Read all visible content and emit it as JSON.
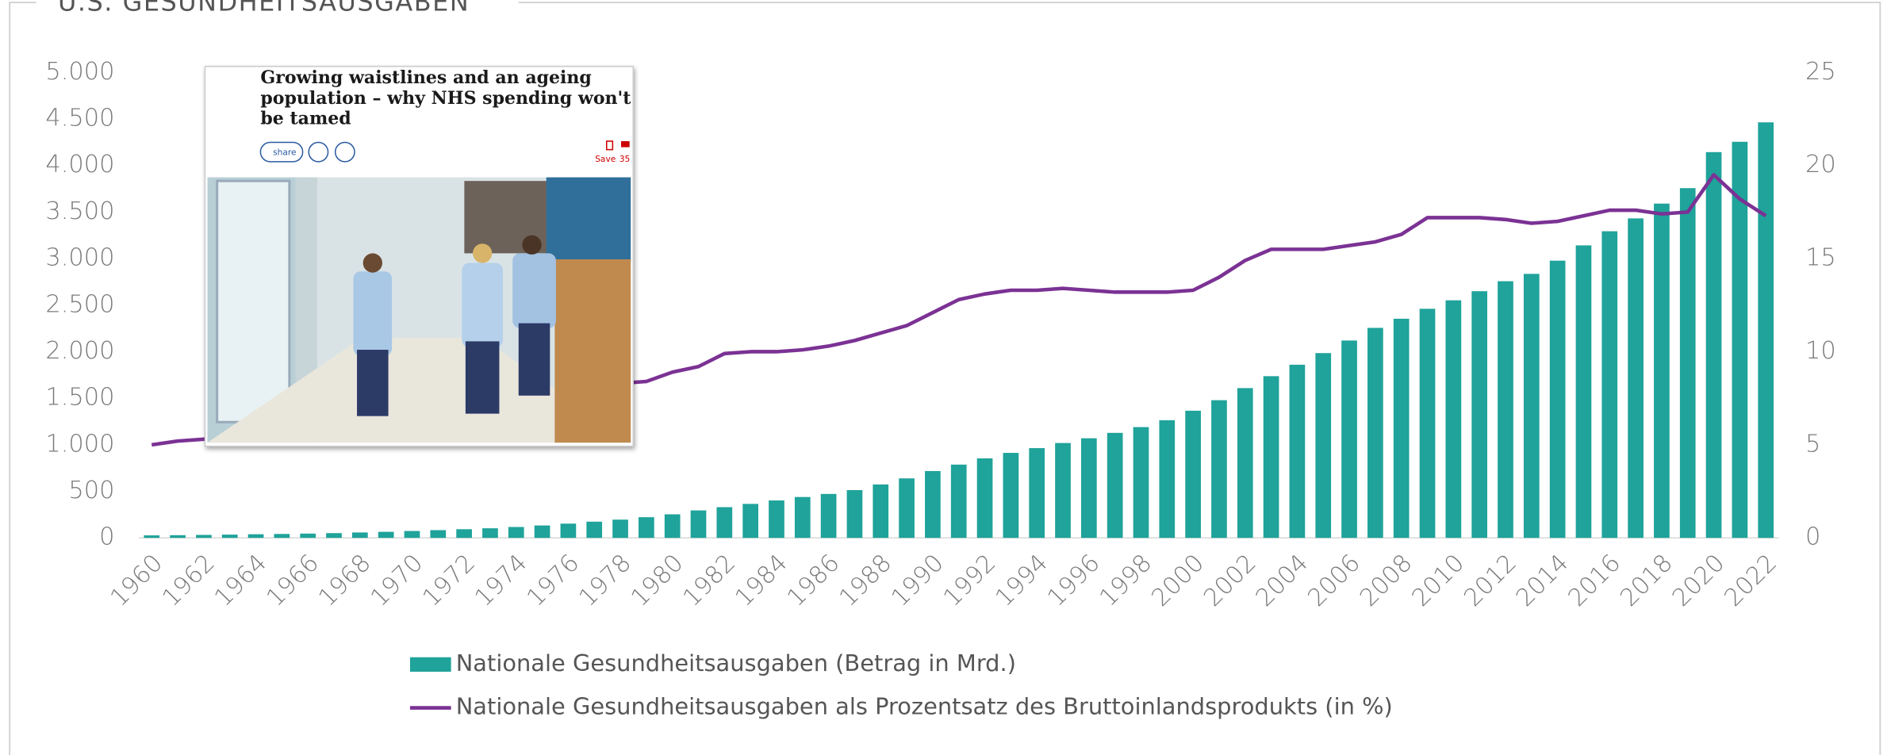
{
  "chart_data": {
    "type": "bar",
    "title": "U.S. GESUNDHEITSAUSGABEN",
    "categories": [
      "1960",
      null,
      "1962",
      null,
      "1964",
      null,
      "1966",
      null,
      "1968",
      null,
      "1970",
      null,
      "1972",
      null,
      "1974",
      null,
      "1976",
      null,
      "1978",
      null,
      "1980",
      null,
      "1982",
      null,
      "1984",
      null,
      "1986",
      null,
      "1988",
      null,
      "1990",
      null,
      "1992",
      null,
      "1994",
      null,
      "1996",
      null,
      "1998",
      null,
      "2000",
      null,
      "2002",
      null,
      "2004",
      null,
      "2006",
      null,
      "2008",
      null,
      "2010",
      null,
      "2012",
      null,
      "2014",
      null,
      "2016",
      null,
      "2018",
      null,
      "2020",
      null,
      "2022"
    ],
    "series": [
      {
        "name": "Nationale Gesundheitsausgaben (Betrag in Mrd.)",
        "type": "bar",
        "color": "#1fa39a",
        "values": [
          27,
          29,
          32,
          35,
          39,
          42,
          46,
          51,
          58,
          65,
          74,
          83,
          93,
          103,
          117,
          133,
          153,
          174,
          196,
          222,
          253,
          295,
          330,
          365,
          402,
          439,
          472,
          513,
          574,
          639,
          718,
          787,
          854,
          913,
          964,
          1019,
          1070,
          1128,
          1190,
          1264,
          1366,
          1479,
          1609,
          1737,
          1860,
          1985,
          2120,
          2256,
          2354,
          2461,
          2552,
          2650,
          2757,
          2836,
          2978,
          3142,
          3294,
          3432,
          3591,
          3757,
          4144,
          4255,
          4464
        ]
      },
      {
        "name": "Nationale Gesundheitsausgaben als Prozentsatz des Bruttoinlandsprodukts (in %)",
        "type": "line",
        "axis": "y2",
        "color": "#7b3294",
        "values": [
          5.0,
          5.2,
          5.3,
          5.4,
          5.6,
          5.6,
          5.6,
          6.0,
          6.2,
          6.4,
          6.9,
          7.1,
          7.2,
          7.3,
          7.6,
          8.0,
          8.2,
          8.4,
          8.3,
          8.4,
          8.9,
          9.2,
          9.9,
          10.0,
          10.0,
          10.1,
          10.3,
          10.6,
          11.0,
          11.4,
          12.1,
          12.8,
          13.1,
          13.3,
          13.3,
          13.4,
          13.3,
          13.2,
          13.2,
          13.2,
          13.3,
          14.0,
          14.9,
          15.5,
          15.5,
          15.5,
          15.7,
          15.9,
          16.3,
          17.2,
          17.2,
          17.2,
          17.1,
          16.9,
          17.0,
          17.3,
          17.6,
          17.6,
          17.4,
          17.5,
          19.5,
          18.2,
          17.3
        ]
      }
    ],
    "ylim": [
      0,
      5000
    ],
    "yticks": [
      0,
      500,
      {
        "value": 1000,
        "label": "1.000"
      },
      {
        "value": 1500,
        "label": "1.500"
      },
      {
        "value": 2000,
        "label": "2.000"
      },
      {
        "value": 2500,
        "label": "2.500"
      },
      {
        "value": 3000,
        "label": "3.000"
      },
      {
        "value": 3500,
        "label": "3.500"
      },
      {
        "value": 4000,
        "label": "4.000"
      },
      {
        "value": 4500,
        "label": "4.500"
      },
      {
        "value": 5000,
        "label": "5.000"
      }
    ],
    "y2lim": [
      0,
      25
    ],
    "y2ticks": [
      0,
      5,
      10,
      15,
      20,
      25
    ],
    "grid": false,
    "legend": "bottom"
  },
  "inset": {
    "headline": [
      "Growing waistlines and an ageing",
      "population – why NHS spending won't",
      "be tamed"
    ],
    "share": "share",
    "save": "Save",
    "comments": "35"
  }
}
